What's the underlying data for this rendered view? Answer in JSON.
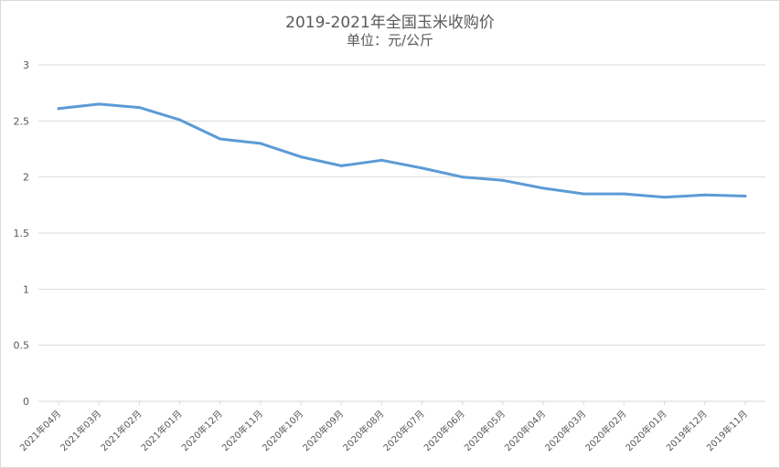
{
  "chart_data": {
    "type": "line",
    "title": "2019-2021年全国玉米收购价",
    "subtitle": "单位：元/公斤",
    "categories": [
      "2021年04月",
      "2021年03月",
      "2021年02月",
      "2021年01月",
      "2020年12月",
      "2020年11月",
      "2020年10月",
      "2020年09月",
      "2020年08月",
      "2020年07月",
      "2020年06月",
      "2020年05月",
      "2020年04月",
      "2020年03月",
      "2020年02月",
      "2020年01月",
      "2019年12月",
      "2019年11月"
    ],
    "series": [
      {
        "values": [
          2.61,
          2.65,
          2.62,
          2.51,
          2.34,
          2.3,
          2.18,
          2.1,
          2.15,
          2.08,
          2.0,
          1.97,
          1.9,
          1.85,
          1.85,
          1.82,
          1.84,
          1.83
        ],
        "color": "#5b9bd5"
      }
    ],
    "ylim": [
      0,
      3
    ],
    "yticks": [
      "0",
      "0.5",
      "1",
      "1.5",
      "2",
      "2.5",
      "3"
    ],
    "grid": true,
    "legend": "none"
  }
}
